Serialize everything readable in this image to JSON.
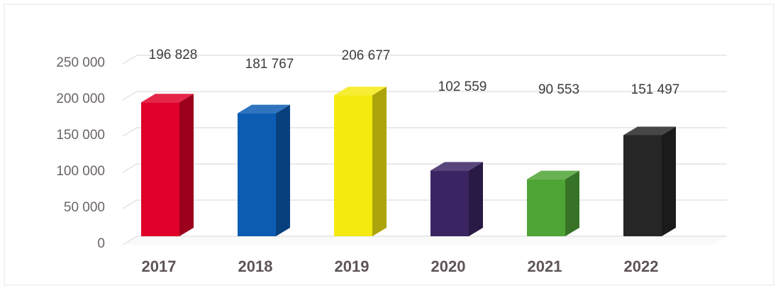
{
  "chart_data": {
    "type": "bar",
    "categories": [
      "2017",
      "2018",
      "2019",
      "2020",
      "2021",
      "2022"
    ],
    "values": [
      196828,
      181767,
      206677,
      102559,
      90553,
      151497
    ],
    "value_labels": [
      "196 828",
      "181 767",
      "206 677",
      "102 559",
      "90 553",
      "151 497"
    ],
    "y_ticks": [
      {
        "value": 0,
        "label": "0"
      },
      {
        "value": 50000,
        "label": "50 000"
      },
      {
        "value": 100000,
        "label": "100 000"
      },
      {
        "value": 150000,
        "label": "150 000"
      },
      {
        "value": 200000,
        "label": "200 000"
      },
      {
        "value": 250000,
        "label": "250 000"
      }
    ],
    "ylim": [
      0,
      250000
    ],
    "grid": true,
    "legend": "none",
    "colors": [
      "#e0002a",
      "#0c5cb4",
      "#f5ea10",
      "#3a2562",
      "#4fa436",
      "#262626"
    ],
    "title": "",
    "xlabel": "",
    "ylabel": ""
  }
}
